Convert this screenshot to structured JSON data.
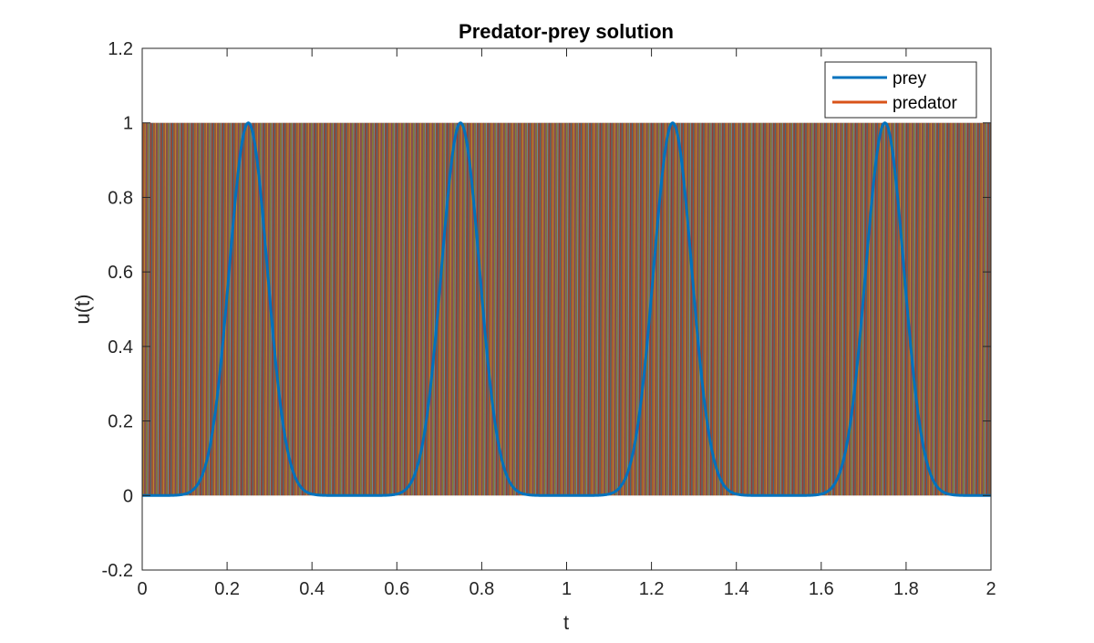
{
  "chart_data": {
    "type": "line",
    "title": "Predator-prey solution",
    "xlabel": "t",
    "ylabel": "u(t)",
    "xlim": [
      0,
      2
    ],
    "ylim": [
      -0.2,
      1.2
    ],
    "x_ticks": [
      0,
      0.2,
      0.4,
      0.6,
      0.8,
      1,
      1.2,
      1.4,
      1.6,
      1.8,
      2
    ],
    "x_tick_labels": [
      "0",
      "0.2",
      "0.4",
      "0.6",
      "0.8",
      "1",
      "1.2",
      "1.4",
      "1.6",
      "1.8",
      "2"
    ],
    "y_ticks": [
      -0.2,
      0,
      0.2,
      0.4,
      0.6,
      0.8,
      1,
      1.2
    ],
    "y_tick_labels": [
      "-0.2",
      "0",
      "0.2",
      "0.4",
      "0.6",
      "0.8",
      "1",
      "1.2"
    ],
    "grid": false,
    "legend_position": "top-right",
    "series": [
      {
        "name": "prey",
        "color": "#0072BD",
        "peak_times": [
          0.25,
          0.75,
          1.25,
          1.75
        ],
        "peak_value": 1,
        "baseline": 0,
        "peak_width": 0.045
      },
      {
        "name": "predator",
        "color": "#D95319"
      }
    ],
    "background_band": {
      "y_range": [
        0,
        1
      ],
      "x_range": [
        0,
        2
      ],
      "colors": [
        "#0072BD",
        "#D95319",
        "#EDB120",
        "#7E2F8E",
        "#77AC30",
        "#4DBEEE",
        "#A2142F"
      ]
    }
  }
}
